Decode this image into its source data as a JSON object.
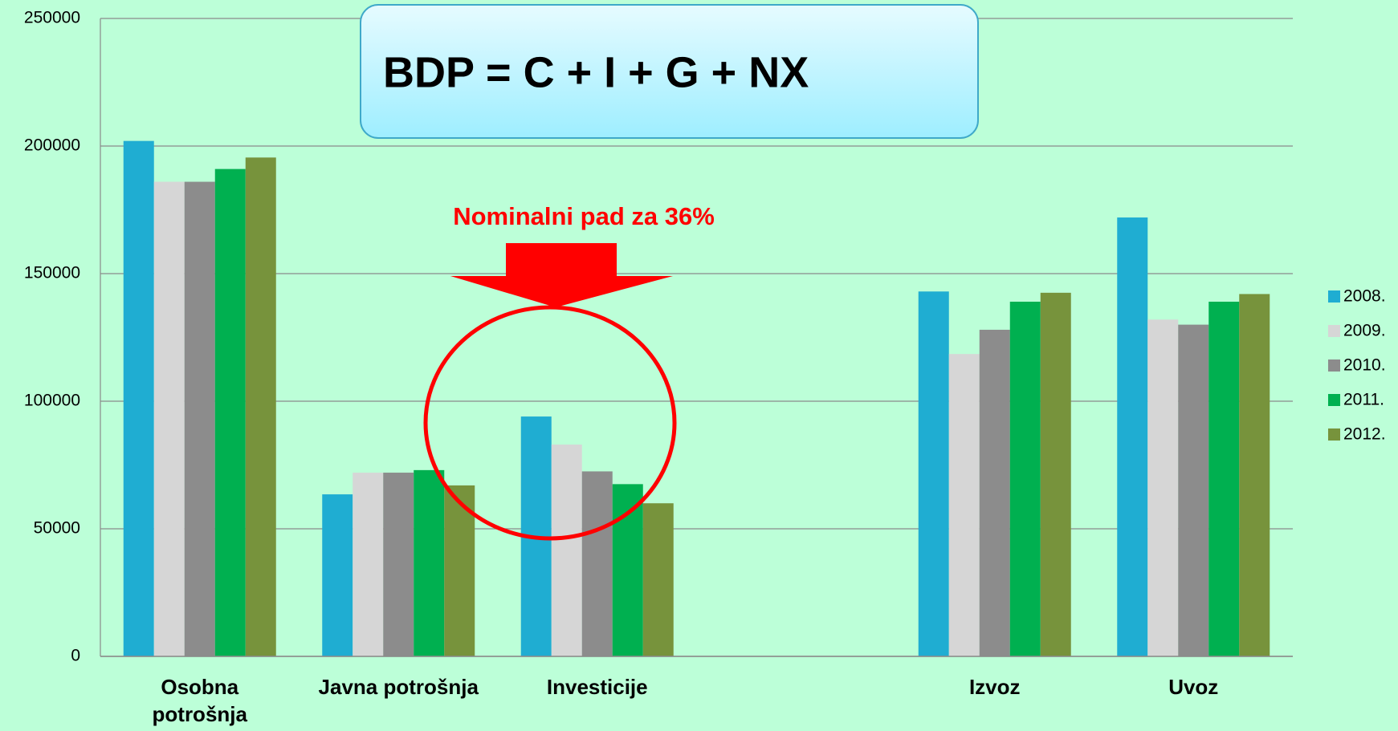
{
  "chart_data": {
    "type": "bar",
    "title": "BDP = C + I + G + NX",
    "annotation": "Nominalni pad za 36%",
    "categories": [
      "Osobna potrošnja",
      "Javna potrošnja",
      "Investicije",
      null,
      "Izvoz",
      "Uvoz"
    ],
    "series": [
      {
        "name": "2008.",
        "color": "#1fadd2",
        "values": [
          202000,
          63500,
          94000,
          null,
          143000,
          172000
        ]
      },
      {
        "name": "2009.",
        "color": "#d6d6d6",
        "values": [
          186000,
          72000,
          83000,
          null,
          118500,
          132000
        ]
      },
      {
        "name": "2010.",
        "color": "#8c8c8c",
        "values": [
          186000,
          72000,
          72500,
          null,
          128000,
          130000
        ]
      },
      {
        "name": "2011.",
        "color": "#00b050",
        "values": [
          191000,
          73000,
          67500,
          null,
          139000,
          139000
        ]
      },
      {
        "name": "2012.",
        "color": "#77933c",
        "values": [
          195500,
          67000,
          60000,
          null,
          142500,
          142000
        ]
      }
    ],
    "ylim": [
      0,
      250000
    ],
    "yticks": [
      0,
      50000,
      100000,
      150000,
      200000,
      250000
    ],
    "grid": true,
    "legend": "right"
  }
}
